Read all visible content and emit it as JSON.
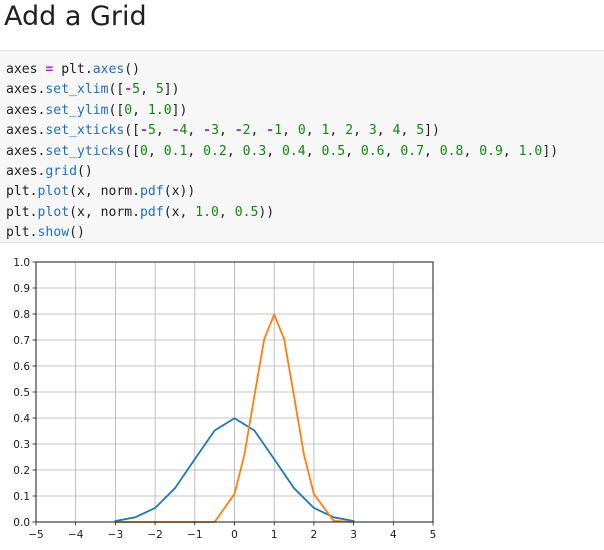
{
  "heading": "Add a Grid",
  "code_lines": [
    [
      {
        "t": "axes ",
        "k": "plain"
      },
      {
        "t": "=",
        "k": "op"
      },
      {
        "t": " plt.",
        "k": "plain"
      },
      {
        "t": "axes",
        "k": "fn"
      },
      {
        "t": "()",
        "k": "plain"
      }
    ],
    [
      {
        "t": "axes.",
        "k": "plain"
      },
      {
        "t": "set_xlim",
        "k": "fn"
      },
      {
        "t": "([",
        "k": "plain"
      },
      {
        "t": "-",
        "k": "op"
      },
      {
        "t": "5",
        "k": "num"
      },
      {
        "t": ", ",
        "k": "plain"
      },
      {
        "t": "5",
        "k": "num"
      },
      {
        "t": "])",
        "k": "plain"
      }
    ],
    [
      {
        "t": "axes.",
        "k": "plain"
      },
      {
        "t": "set_ylim",
        "k": "fn"
      },
      {
        "t": "([",
        "k": "plain"
      },
      {
        "t": "0",
        "k": "num"
      },
      {
        "t": ", ",
        "k": "plain"
      },
      {
        "t": "1.0",
        "k": "num"
      },
      {
        "t": "])",
        "k": "plain"
      }
    ],
    [
      {
        "t": "axes.",
        "k": "plain"
      },
      {
        "t": "set_xticks",
        "k": "fn"
      },
      {
        "t": "([",
        "k": "plain"
      },
      {
        "t": "-",
        "k": "op"
      },
      {
        "t": "5",
        "k": "num"
      },
      {
        "t": ", ",
        "k": "plain"
      },
      {
        "t": "-",
        "k": "op"
      },
      {
        "t": "4",
        "k": "num"
      },
      {
        "t": ", ",
        "k": "plain"
      },
      {
        "t": "-",
        "k": "op"
      },
      {
        "t": "3",
        "k": "num"
      },
      {
        "t": ", ",
        "k": "plain"
      },
      {
        "t": "-",
        "k": "op"
      },
      {
        "t": "2",
        "k": "num"
      },
      {
        "t": ", ",
        "k": "plain"
      },
      {
        "t": "-",
        "k": "op"
      },
      {
        "t": "1",
        "k": "num"
      },
      {
        "t": ", ",
        "k": "plain"
      },
      {
        "t": "0",
        "k": "num"
      },
      {
        "t": ", ",
        "k": "plain"
      },
      {
        "t": "1",
        "k": "num"
      },
      {
        "t": ", ",
        "k": "plain"
      },
      {
        "t": "2",
        "k": "num"
      },
      {
        "t": ", ",
        "k": "plain"
      },
      {
        "t": "3",
        "k": "num"
      },
      {
        "t": ", ",
        "k": "plain"
      },
      {
        "t": "4",
        "k": "num"
      },
      {
        "t": ", ",
        "k": "plain"
      },
      {
        "t": "5",
        "k": "num"
      },
      {
        "t": "])",
        "k": "plain"
      }
    ],
    [
      {
        "t": "axes.",
        "k": "plain"
      },
      {
        "t": "set_yticks",
        "k": "fn"
      },
      {
        "t": "([",
        "k": "plain"
      },
      {
        "t": "0",
        "k": "num"
      },
      {
        "t": ", ",
        "k": "plain"
      },
      {
        "t": "0.1",
        "k": "num"
      },
      {
        "t": ", ",
        "k": "plain"
      },
      {
        "t": "0.2",
        "k": "num"
      },
      {
        "t": ", ",
        "k": "plain"
      },
      {
        "t": "0.3",
        "k": "num"
      },
      {
        "t": ", ",
        "k": "plain"
      },
      {
        "t": "0.4",
        "k": "num"
      },
      {
        "t": ", ",
        "k": "plain"
      },
      {
        "t": "0.5",
        "k": "num"
      },
      {
        "t": ", ",
        "k": "plain"
      },
      {
        "t": "0.6",
        "k": "num"
      },
      {
        "t": ", ",
        "k": "plain"
      },
      {
        "t": "0.7",
        "k": "num"
      },
      {
        "t": ", ",
        "k": "plain"
      },
      {
        "t": "0.8",
        "k": "num"
      },
      {
        "t": ", ",
        "k": "plain"
      },
      {
        "t": "0.9",
        "k": "num"
      },
      {
        "t": ", ",
        "k": "plain"
      },
      {
        "t": "1.0",
        "k": "num"
      },
      {
        "t": "])",
        "k": "plain"
      }
    ],
    [
      {
        "t": "axes.",
        "k": "plain"
      },
      {
        "t": "grid",
        "k": "fn"
      },
      {
        "t": "()",
        "k": "plain"
      }
    ],
    [
      {
        "t": "plt.",
        "k": "plain"
      },
      {
        "t": "plot",
        "k": "fn"
      },
      {
        "t": "(x, norm.",
        "k": "plain"
      },
      {
        "t": "pdf",
        "k": "fn"
      },
      {
        "t": "(x))",
        "k": "plain"
      }
    ],
    [
      {
        "t": "plt.",
        "k": "plain"
      },
      {
        "t": "plot",
        "k": "fn"
      },
      {
        "t": "(x, norm.",
        "k": "plain"
      },
      {
        "t": "pdf",
        "k": "fn"
      },
      {
        "t": "(x, ",
        "k": "plain"
      },
      {
        "t": "1.0",
        "k": "num"
      },
      {
        "t": ", ",
        "k": "plain"
      },
      {
        "t": "0.5",
        "k": "num"
      },
      {
        "t": "))",
        "k": "plain"
      }
    ],
    [
      {
        "t": "plt.",
        "k": "plain"
      },
      {
        "t": "show",
        "k": "fn"
      },
      {
        "t": "()",
        "k": "plain"
      }
    ]
  ],
  "chart_data": {
    "type": "line",
    "xlim": [
      -5,
      5
    ],
    "ylim": [
      0,
      1.0
    ],
    "xticks": [
      -5,
      -4,
      -3,
      -2,
      -1,
      0,
      1,
      2,
      3,
      4,
      5
    ],
    "xtick_labels": [
      "−5",
      "−4",
      "−3",
      "−2",
      "−1",
      "0",
      "1",
      "2",
      "3",
      "4",
      "5"
    ],
    "yticks": [
      0,
      0.1,
      0.2,
      0.3,
      0.4,
      0.5,
      0.6,
      0.7,
      0.8,
      0.9,
      1.0
    ],
    "ytick_labels": [
      "0.0",
      "0.1",
      "0.2",
      "0.3",
      "0.4",
      "0.5",
      "0.6",
      "0.7",
      "0.8",
      "0.9",
      "1.0"
    ],
    "grid": true,
    "series": [
      {
        "color": "#1f77b4",
        "x": [
          -3.0,
          -2.5,
          -2.0,
          -1.5,
          -1.0,
          -0.5,
          0.0,
          0.5,
          1.0,
          1.5,
          2.0,
          2.5,
          3.0
        ],
        "y": [
          0.004,
          0.018,
          0.054,
          0.13,
          0.242,
          0.352,
          0.399,
          0.352,
          0.242,
          0.13,
          0.054,
          0.018,
          0.004
        ]
      },
      {
        "color": "#ff7f0e",
        "x": [
          -3.0,
          -1.0,
          -0.5,
          0.0,
          0.25,
          0.5,
          0.75,
          1.0,
          1.25,
          1.5,
          1.75,
          2.0,
          2.5,
          3.0
        ],
        "y": [
          0.0,
          0.0,
          0.0,
          0.108,
          0.259,
          0.484,
          0.704,
          0.798,
          0.704,
          0.484,
          0.259,
          0.108,
          0.004,
          0.0
        ]
      }
    ]
  }
}
